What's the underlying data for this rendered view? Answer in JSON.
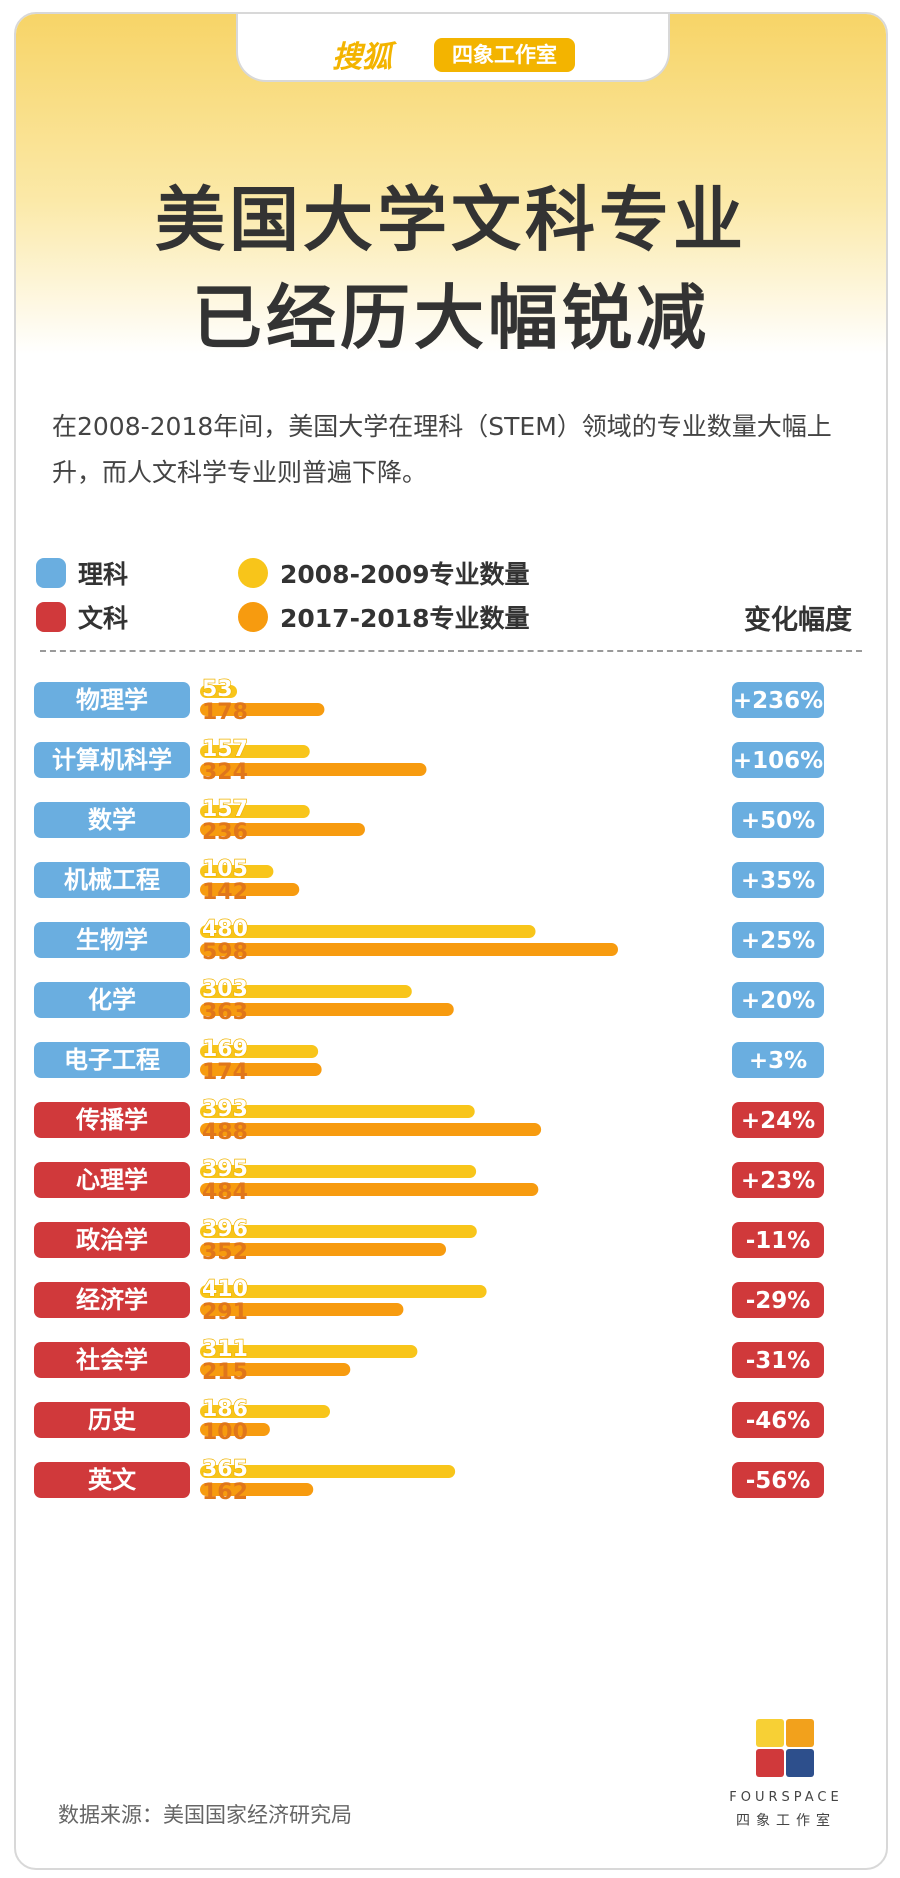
{
  "header": {
    "brand": "搜狐",
    "studio": "四象工作室",
    "title_line1": "美国大学文科专业",
    "title_line2": "已经历大幅锐减",
    "intro": "在2008-2018年间，美国大学在理科（STEM）领域的专业数量大幅上升，而人文科学专业则普遍下降。"
  },
  "legend": {
    "science": "理科",
    "humanities": "文科",
    "period_2008": "2008-2009专业数量",
    "period_2017": "2017-2018专业数量",
    "change_header": "变化幅度"
  },
  "colors": {
    "science": "#6aaee0",
    "humanities": "#d0393b",
    "bar_2008": "#f8c51a",
    "bar_2017": "#f79b0f",
    "label_2008": "#f0b400",
    "label_2017": "#e0761a"
  },
  "chart_data": {
    "type": "bar",
    "orientation": "horizontal",
    "categories": [
      "物理学",
      "计算机科学",
      "数学",
      "机械工程",
      "生物学",
      "化学",
      "电子工程",
      "传播学",
      "心理学",
      "政治学",
      "经济学",
      "社会学",
      "历史",
      "英文"
    ],
    "groups": [
      "理科",
      "理科",
      "理科",
      "理科",
      "理科",
      "理科",
      "理科",
      "文科",
      "文科",
      "文科",
      "文科",
      "文科",
      "文科",
      "文科"
    ],
    "series": [
      {
        "name": "2008-2009专业数量",
        "values": [
          53,
          157,
          157,
          105,
          480,
          303,
          169,
          393,
          395,
          396,
          410,
          311,
          186,
          365
        ]
      },
      {
        "name": "2017-2018专业数量",
        "values": [
          178,
          324,
          236,
          142,
          598,
          363,
          174,
          488,
          484,
          352,
          291,
          215,
          100,
          162
        ]
      }
    ],
    "changes": [
      "+236%",
      "+106%",
      "+50%",
      "+35%",
      "+25%",
      "+20%",
      "+3%",
      "+24%",
      "+23%",
      "-11%",
      "-29%",
      "-31%",
      "-46%",
      "-56%"
    ],
    "xlim": [
      0,
      598
    ]
  },
  "footer": {
    "source": "数据来源：美国国家经济研究局",
    "logo_text": "FOURSPACE",
    "logo_sub": "四象工作室"
  }
}
